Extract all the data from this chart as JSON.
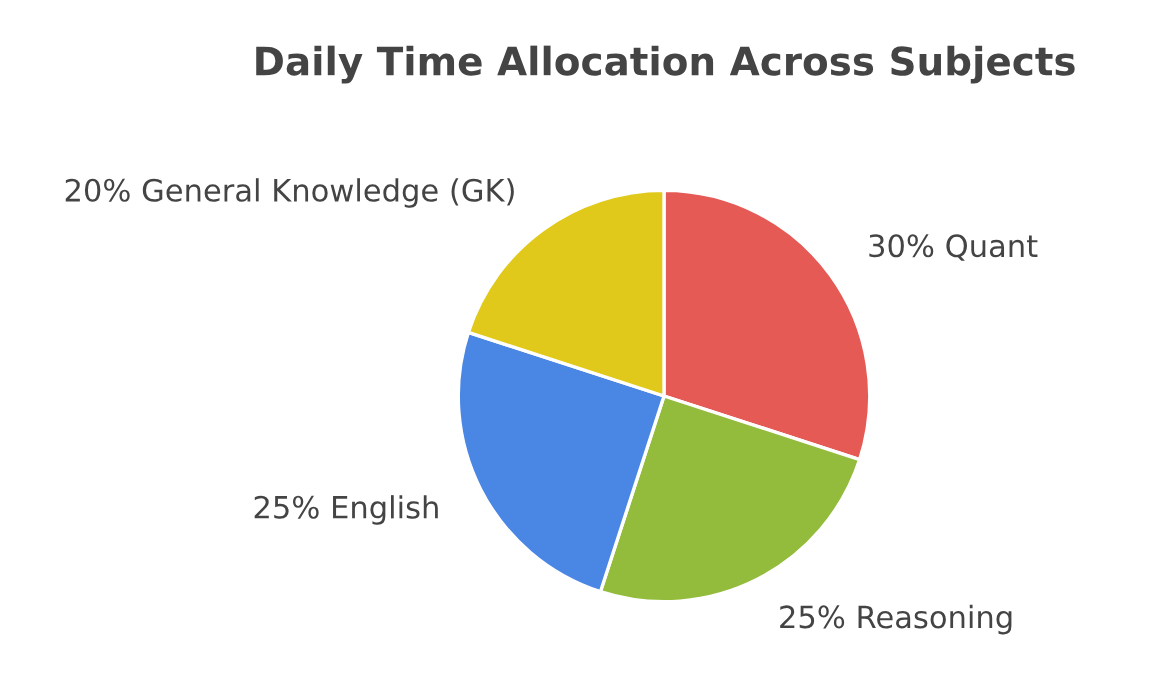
{
  "chart_data": {
    "type": "pie",
    "title": "Daily Time Allocation Across Subjects",
    "categories": [
      "Quant",
      "Reasoning",
      "English",
      "General Knowledge (GK)"
    ],
    "values": [
      30,
      25,
      25,
      20
    ],
    "value_labels": [
      "30%",
      "25%",
      "25%",
      "20%"
    ],
    "colors": [
      "#e55a55",
      "#93bb3c",
      "#4a86e4",
      "#e0c91a"
    ]
  }
}
